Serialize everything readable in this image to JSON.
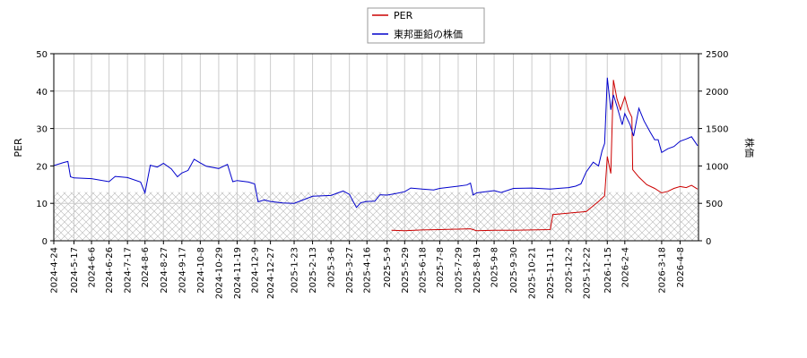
{
  "chart_data": {
    "type": "line",
    "xlabel": "",
    "ylabel_left": "PER",
    "ylabel_right": "株価",
    "ylim_left": [
      0,
      50
    ],
    "ylim_right": [
      0,
      2500
    ],
    "yticks_left": [
      "0",
      "10",
      "20",
      "30",
      "40",
      "50"
    ],
    "yticks_right": [
      "0",
      "500",
      "1000",
      "1500",
      "2000",
      "2500"
    ],
    "xlim": [
      "2024-04-24",
      "2026-04-29"
    ],
    "xticks": [
      "2024-4-24",
      "2024-5-17",
      "2024-6-6",
      "2024-6-26",
      "2024-7-17",
      "2024-8-6",
      "2024-8-27",
      "2024-9-17",
      "2024-10-8",
      "2024-10-29",
      "2024-11-19",
      "2024-12-9",
      "2024-12-27",
      "2025-1-23",
      "2025-2-13",
      "2025-3-6",
      "2025-3-27",
      "2025-4-16",
      "2025-5-9",
      "2025-5-29",
      "2025-6-18",
      "2025-7-8",
      "2025-7-29",
      "2025-8-19",
      "2025-9-8",
      "2025-9-30",
      "2025-10-21",
      "2025-11-11",
      "2025-12-2",
      "2025-12-22",
      "2026-1-15",
      "2026-2-4",
      "2026-3-18",
      "2026-4-8"
    ],
    "grid": true,
    "legend_position": "top-center",
    "hatch_band_right_axis": [
      0,
      650
    ],
    "series": [
      {
        "name": "PER",
        "axis": "left",
        "color": "#cc0000",
        "points": [
          [
            "2025-05-14",
            2.8
          ],
          [
            "2025-05-29",
            2.7
          ],
          [
            "2025-06-18",
            2.9
          ],
          [
            "2025-07-08",
            3.0
          ],
          [
            "2025-07-29",
            3.1
          ],
          [
            "2025-08-12",
            3.2
          ],
          [
            "2025-08-19",
            2.7
          ],
          [
            "2025-09-08",
            2.8
          ],
          [
            "2025-09-30",
            2.8
          ],
          [
            "2025-10-21",
            2.9
          ],
          [
            "2025-11-11",
            3.0
          ],
          [
            "2025-11-14",
            7.0
          ],
          [
            "2025-12-02",
            7.4
          ],
          [
            "2025-12-22",
            7.8
          ],
          [
            "2026-01-05",
            10.5
          ],
          [
            "2026-01-12",
            12.0
          ],
          [
            "2026-01-15",
            22.5
          ],
          [
            "2026-01-19",
            18.0
          ],
          [
            "2026-01-22",
            43.0
          ],
          [
            "2026-01-26",
            38.0
          ],
          [
            "2026-01-30",
            35.0
          ],
          [
            "2026-02-04",
            38.5
          ],
          [
            "2026-02-08",
            35.0
          ],
          [
            "2026-02-12",
            33.0
          ],
          [
            "2026-02-13",
            19.0
          ],
          [
            "2026-02-20",
            17.0
          ],
          [
            "2026-03-01",
            15.0
          ],
          [
            "2026-03-10",
            14.0
          ],
          [
            "2026-03-18",
            12.8
          ],
          [
            "2026-03-25",
            13.2
          ],
          [
            "2026-04-01",
            14.0
          ],
          [
            "2026-04-08",
            14.5
          ],
          [
            "2026-04-15",
            14.2
          ],
          [
            "2026-04-21",
            14.8
          ],
          [
            "2026-04-28",
            13.8
          ]
        ]
      },
      {
        "name": "東邦亜鉛の株価",
        "axis": "right",
        "color": "#0000cc",
        "points": [
          [
            "2024-04-24",
            1005
          ],
          [
            "2024-05-05",
            1045
          ],
          [
            "2024-05-10",
            1060
          ],
          [
            "2024-05-13",
            855
          ],
          [
            "2024-05-17",
            840
          ],
          [
            "2024-06-06",
            830
          ],
          [
            "2024-06-26",
            790
          ],
          [
            "2024-07-03",
            860
          ],
          [
            "2024-07-17",
            845
          ],
          [
            "2024-08-01",
            785
          ],
          [
            "2024-08-06",
            640
          ],
          [
            "2024-08-12",
            1010
          ],
          [
            "2024-08-20",
            985
          ],
          [
            "2024-08-27",
            1035
          ],
          [
            "2024-09-05",
            960
          ],
          [
            "2024-09-12",
            855
          ],
          [
            "2024-09-17",
            905
          ],
          [
            "2024-09-24",
            940
          ],
          [
            "2024-10-01",
            1090
          ],
          [
            "2024-10-08",
            1040
          ],
          [
            "2024-10-15",
            995
          ],
          [
            "2024-10-29",
            965
          ],
          [
            "2024-11-08",
            1020
          ],
          [
            "2024-11-14",
            790
          ],
          [
            "2024-11-19",
            805
          ],
          [
            "2024-12-02",
            785
          ],
          [
            "2024-12-09",
            760
          ],
          [
            "2024-12-13",
            520
          ],
          [
            "2024-12-20",
            545
          ],
          [
            "2024-12-27",
            525
          ],
          [
            "2025-01-10",
            505
          ],
          [
            "2025-01-23",
            500
          ],
          [
            "2025-02-13",
            595
          ],
          [
            "2025-03-06",
            605
          ],
          [
            "2025-03-20",
            665
          ],
          [
            "2025-03-27",
            620
          ],
          [
            "2025-04-04",
            445
          ],
          [
            "2025-04-09",
            510
          ],
          [
            "2025-04-16",
            525
          ],
          [
            "2025-04-25",
            530
          ],
          [
            "2025-05-01",
            615
          ],
          [
            "2025-05-09",
            610
          ],
          [
            "2025-05-19",
            630
          ],
          [
            "2025-05-29",
            655
          ],
          [
            "2025-06-05",
            705
          ],
          [
            "2025-06-18",
            690
          ],
          [
            "2025-07-01",
            680
          ],
          [
            "2025-07-08",
            700
          ],
          [
            "2025-07-29",
            730
          ],
          [
            "2025-08-08",
            745
          ],
          [
            "2025-08-12",
            770
          ],
          [
            "2025-08-15",
            610
          ],
          [
            "2025-08-19",
            640
          ],
          [
            "2025-09-08",
            670
          ],
          [
            "2025-09-16",
            645
          ],
          [
            "2025-09-30",
            700
          ],
          [
            "2025-10-21",
            705
          ],
          [
            "2025-11-11",
            690
          ],
          [
            "2025-11-20",
            700
          ],
          [
            "2025-12-02",
            710
          ],
          [
            "2025-12-10",
            730
          ],
          [
            "2025-12-16",
            760
          ],
          [
            "2025-12-22",
            920
          ],
          [
            "2025-12-30",
            1050
          ],
          [
            "2026-01-05",
            1000
          ],
          [
            "2026-01-09",
            1200
          ],
          [
            "2026-01-12",
            1300
          ],
          [
            "2026-01-15",
            2180
          ],
          [
            "2026-01-19",
            1750
          ],
          [
            "2026-01-22",
            1950
          ],
          [
            "2026-01-26",
            1800
          ],
          [
            "2026-02-01",
            1550
          ],
          [
            "2026-02-04",
            1700
          ],
          [
            "2026-02-10",
            1550
          ],
          [
            "2026-02-14",
            1400
          ],
          [
            "2026-02-20",
            1770
          ],
          [
            "2026-02-26",
            1600
          ],
          [
            "2026-03-05",
            1450
          ],
          [
            "2026-03-10",
            1350
          ],
          [
            "2026-03-14",
            1350
          ],
          [
            "2026-03-18",
            1180
          ],
          [
            "2026-03-25",
            1230
          ],
          [
            "2026-04-01",
            1260
          ],
          [
            "2026-04-08",
            1330
          ],
          [
            "2026-04-15",
            1360
          ],
          [
            "2026-04-21",
            1390
          ],
          [
            "2026-04-28",
            1270
          ]
        ]
      }
    ]
  }
}
